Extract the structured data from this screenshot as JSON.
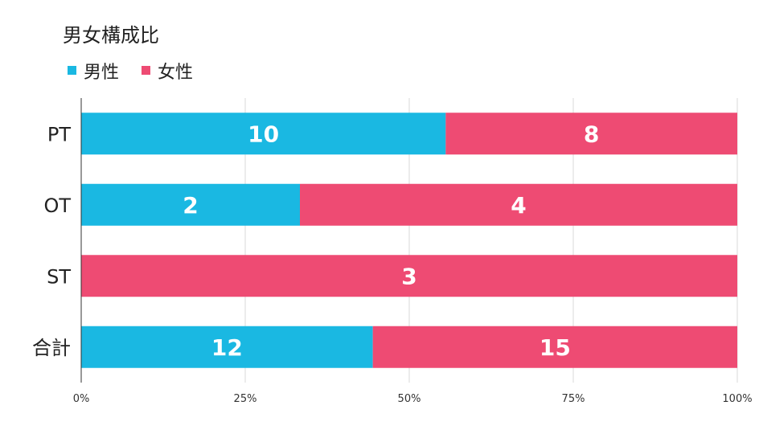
{
  "chart_data": {
    "type": "bar",
    "orientation": "horizontal",
    "stacked": "percent",
    "title": "男女構成比",
    "categories": [
      "PT",
      "OT",
      "ST",
      "合計"
    ],
    "series": [
      {
        "name": "男性",
        "values": [
          10,
          2,
          0,
          12
        ],
        "color": "#1ab8e2"
      },
      {
        "name": "女性",
        "values": [
          8,
          4,
          3,
          15
        ],
        "color": "#ee4b73"
      }
    ],
    "x_ticks": [
      "0%",
      "25%",
      "50%",
      "75%",
      "100%"
    ],
    "xlim": [
      0,
      100
    ],
    "grid": true,
    "legend_position": "top-left"
  }
}
